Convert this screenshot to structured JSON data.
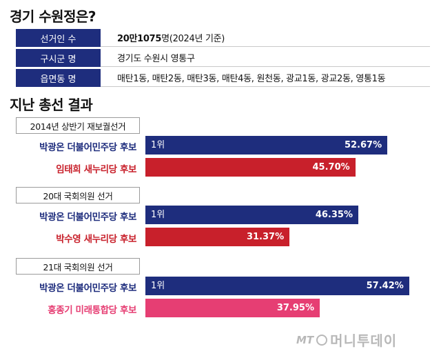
{
  "title": "경기 수원정은?",
  "info": [
    {
      "label": "선거인 수",
      "value_bold": "20만1075",
      "value": "명(2024년 기준)"
    },
    {
      "label": "구시군 명",
      "value_bold": "",
      "value": "경기도 수원시 영통구"
    },
    {
      "label": "읍면동 명",
      "value_bold": "",
      "value": "매탄1동, 매탄2동, 매탄3동, 매탄4동, 원천동, 광교1동, 광교2동, 영통1동"
    }
  ],
  "section_title": "지난 총선 결과",
  "chart_data": {
    "type": "bar",
    "orientation": "horizontal",
    "title": "지난 총선 결과",
    "unit": "%",
    "xlim": [
      0,
      60
    ],
    "groups": [
      {
        "name": "2014년 상반기 재보궐선거",
        "candidates": [
          {
            "label": "박광온 더불어민주당 후보",
            "value": 52.67,
            "display": "52.67%",
            "rank": "1위",
            "color": "#1e2d7d",
            "label_color": "#1e2d7d"
          },
          {
            "label": "임태희 새누리당 후보",
            "value": 45.7,
            "display": "45.70%",
            "rank": "",
            "color": "#c8202b",
            "label_color": "#c8202b"
          }
        ]
      },
      {
        "name": "20대 국회의원 선거",
        "candidates": [
          {
            "label": "박광온 더불어민주당 후보",
            "value": 46.35,
            "display": "46.35%",
            "rank": "1위",
            "color": "#1e2d7d",
            "label_color": "#1e2d7d"
          },
          {
            "label": "박수영 새누리당 후보",
            "value": 31.37,
            "display": "31.37%",
            "rank": "",
            "color": "#c8202b",
            "label_color": "#c8202b"
          }
        ]
      },
      {
        "name": "21대 국회의원 선거",
        "candidates": [
          {
            "label": "박광온 더불어민주당 후보",
            "value": 57.42,
            "display": "57.42%",
            "rank": "1위",
            "color": "#1e2d7d",
            "label_color": "#1e2d7d"
          },
          {
            "label": "홍종기 미래통합당 후보",
            "value": 37.95,
            "display": "37.95%",
            "rank": "",
            "color": "#e63e73",
            "label_color": "#e63e73"
          }
        ]
      }
    ]
  },
  "logo": {
    "mt": "MT",
    "name": "머니투데이"
  }
}
